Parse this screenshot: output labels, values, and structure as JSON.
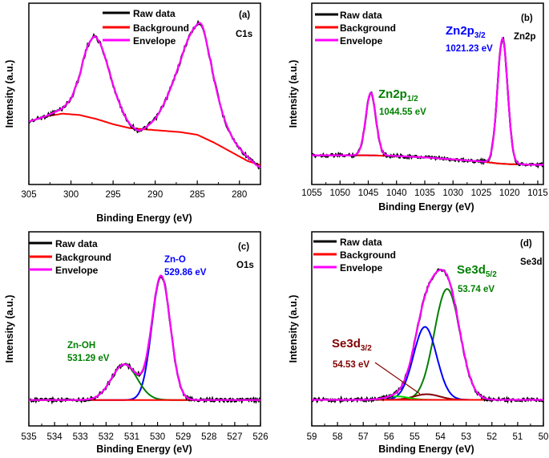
{
  "colors": {
    "raw": "#000000",
    "background": "#ff0000",
    "envelope": "#ff00ff",
    "blue": "#0000ff",
    "green": "#008000",
    "darkred": "#800000"
  },
  "chart_data": [
    {
      "id": "a",
      "type": "line",
      "panel_label": "(a)",
      "corner_label": "C1s",
      "xlabel": "Binding Energy (eV)",
      "ylabel": "Intensity (a.u.)",
      "xlim": [
        305,
        277.5
      ],
      "ylim": [
        0,
        1.12
      ],
      "xticks": [
        305,
        300,
        295,
        290,
        285,
        280
      ],
      "legend": [
        "Raw data",
        "Background",
        "Envelope"
      ],
      "series": [
        {
          "name": "Envelope",
          "color": "#ff00ff",
          "kind": "envelope",
          "x": [
            305,
            303,
            301,
            300,
            299,
            298.5,
            298,
            297.5,
            297.2,
            297,
            296.5,
            296,
            295.5,
            295,
            294.5,
            294,
            293.5,
            293,
            292.5,
            292,
            291.5,
            291,
            290.5,
            290,
            289.5,
            289,
            288.5,
            288,
            287.5,
            287,
            286.5,
            286,
            285.5,
            285,
            284.7,
            284.5,
            284.2,
            284,
            283.5,
            283,
            282.5,
            282,
            281.5,
            281,
            280.5,
            280,
            279.5,
            279,
            278.5,
            278,
            277.5
          ],
          "y": [
            0.38,
            0.42,
            0.48,
            0.55,
            0.72,
            0.86,
            0.96,
            1.01,
            1.03,
            1.02,
            0.97,
            0.88,
            0.77,
            0.66,
            0.56,
            0.48,
            0.41,
            0.36,
            0.33,
            0.31,
            0.32,
            0.34,
            0.37,
            0.4,
            0.45,
            0.51,
            0.58,
            0.66,
            0.75,
            0.84,
            0.94,
            1.02,
            1.08,
            1.12,
            1.13,
            1.12,
            1.07,
            1.01,
            0.86,
            0.7,
            0.56,
            0.44,
            0.35,
            0.28,
            0.22,
            0.18,
            0.14,
            0.11,
            0.08,
            0.05,
            0.03
          ]
        },
        {
          "name": "Background",
          "color": "#ff0000",
          "kind": "line",
          "x": [
            305,
            303,
            301,
            299,
            297,
            295,
            293,
            291,
            289,
            287,
            285,
            283,
            281,
            279,
            277.5
          ],
          "y": [
            0.38,
            0.42,
            0.44,
            0.43,
            0.4,
            0.36,
            0.33,
            0.32,
            0.31,
            0.3,
            0.28,
            0.22,
            0.15,
            0.08,
            0.05
          ]
        }
      ]
    },
    {
      "id": "b",
      "type": "line",
      "panel_label": "(b)",
      "corner_label": "Zn2p",
      "xlabel": "Binding Energy (eV)",
      "ylabel": "Intensity (a.u.)",
      "xlim": [
        1055,
        1014
      ],
      "ylim": [
        0,
        1.12
      ],
      "xticks": [
        1055,
        1050,
        1045,
        1040,
        1035,
        1030,
        1025,
        1020,
        1015
      ],
      "legend": [
        "Raw data",
        "Background",
        "Envelope"
      ],
      "annotations": [
        {
          "main": "Zn2p",
          "sub": "3/2",
          "value": "1021.23 eV",
          "color": "#0000ff"
        },
        {
          "main": "Zn2p",
          "sub": "1/2",
          "value": "1044.55 eV",
          "color": "#008000"
        }
      ],
      "peaks": [
        {
          "name": "Zn2p3/2",
          "center": 1021.23,
          "height": 0.92,
          "width": 0.9,
          "color": "#0000ff"
        },
        {
          "name": "Zn2p1/2",
          "center": 1044.55,
          "height": 0.46,
          "width": 0.9,
          "color": "#008000"
        }
      ],
      "series": [
        {
          "name": "Background",
          "color": "#ff0000",
          "kind": "line",
          "x": [
            1055,
            1045,
            1040,
            1035,
            1030,
            1025,
            1022,
            1020,
            1015,
            1014
          ],
          "y": [
            0.12,
            0.12,
            0.115,
            0.105,
            0.09,
            0.075,
            0.06,
            0.055,
            0.05,
            0.05
          ]
        }
      ]
    },
    {
      "id": "c",
      "type": "line",
      "panel_label": "(c)",
      "corner_label": "O1s",
      "xlabel": "Binding Energy (eV)",
      "ylabel": "Intensity (a.u.)",
      "xlim": [
        535,
        526
      ],
      "ylim": [
        0,
        1.12
      ],
      "xticks": [
        535,
        534,
        533,
        532,
        531,
        530,
        529,
        528,
        527,
        526
      ],
      "legend": [
        "Raw data",
        "Background",
        "Envelope"
      ],
      "annotations": [
        {
          "main": "Zn-O",
          "value": "529.86 eV",
          "color": "#0000ff"
        },
        {
          "main": "Zn-OH",
          "value": "531.29 eV",
          "color": "#008000"
        }
      ],
      "peaks": [
        {
          "name": "Zn-O",
          "center": 529.86,
          "height": 0.94,
          "width": 0.36,
          "color": "#0000ff"
        },
        {
          "name": "Zn-OH",
          "center": 531.29,
          "height": 0.27,
          "width": 0.5,
          "color": "#008000"
        }
      ],
      "series": [
        {
          "name": "Background",
          "color": "#ff0000",
          "kind": "line",
          "x": [
            535,
            526
          ],
          "y": [
            0.02,
            0.02
          ]
        }
      ]
    },
    {
      "id": "d",
      "type": "line",
      "panel_label": "(d)",
      "corner_label": "Se3d",
      "xlabel": "Binding Energy (eV)",
      "ylabel": "Intensity (a.u.)",
      "xlim": [
        59,
        50
      ],
      "ylim": [
        0,
        1.12
      ],
      "xticks": [
        59,
        58,
        57,
        56,
        55,
        54,
        53,
        52,
        51,
        50
      ],
      "legend": [
        "Raw data",
        "Background",
        "Envelope"
      ],
      "annotations": [
        {
          "main": "Se3d",
          "sub": "5/2",
          "value": "53.74 eV",
          "color": "#008000"
        },
        {
          "main": "Se3d",
          "sub": "3/2",
          "value": "54.53 eV",
          "color": "#800000"
        }
      ],
      "peaks": [
        {
          "name": "Se3d5/2",
          "center": 53.74,
          "height": 0.79,
          "width": 0.5,
          "color": "#008000"
        },
        {
          "name": "Se3d (blue)",
          "center": 54.6,
          "height": 0.52,
          "width": 0.45,
          "color": "#0000ff"
        },
        {
          "name": "Se3d3/2",
          "center": 54.53,
          "height": 0.04,
          "width": 0.5,
          "color": "#800000"
        },
        {
          "name": "minor",
          "center": 55.7,
          "height": 0.025,
          "width": 0.45,
          "color": "#00dd00"
        }
      ],
      "series": [
        {
          "name": "Background",
          "color": "#ff0000",
          "kind": "line",
          "x": [
            59,
            50
          ],
          "y": [
            0.02,
            0.02
          ]
        }
      ]
    }
  ]
}
